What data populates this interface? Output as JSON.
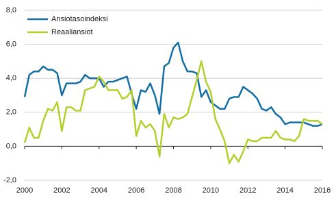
{
  "chart_data": {
    "type": "line",
    "x": [
      2000,
      2000.25,
      2000.5,
      2000.75,
      2001,
      2001.25,
      2001.5,
      2001.75,
      2002,
      2002.25,
      2002.5,
      2002.75,
      2003,
      2003.25,
      2003.5,
      2003.75,
      2004,
      2004.25,
      2004.5,
      2004.75,
      2005,
      2005.25,
      2005.5,
      2005.75,
      2006,
      2006.25,
      2006.5,
      2006.75,
      2007,
      2007.25,
      2007.5,
      2007.75,
      2008,
      2008.25,
      2008.5,
      2008.75,
      2009,
      2009.25,
      2009.5,
      2009.75,
      2010,
      2010.25,
      2010.5,
      2010.75,
      2011,
      2011.25,
      2011.5,
      2011.75,
      2012,
      2012.25,
      2012.5,
      2012.75,
      2013,
      2013.25,
      2013.5,
      2013.75,
      2014,
      2014.25,
      2014.5,
      2014.75,
      2015,
      2015.25,
      2015.5,
      2015.75,
      2016
    ],
    "series": [
      {
        "name": "Ansiotasoindeksi",
        "color": "#136ea6",
        "values": [
          2.9,
          4.2,
          4.4,
          4.4,
          4.7,
          4.5,
          4.5,
          4.3,
          3.0,
          3.7,
          3.7,
          3.7,
          3.8,
          4.2,
          4.0,
          4.0,
          4.0,
          3.5,
          3.8,
          3.8,
          3.9,
          4.0,
          4.1,
          3.1,
          2.2,
          3.3,
          3.2,
          3.7,
          3.0,
          1.9,
          4.7,
          4.9,
          5.8,
          6.1,
          5.0,
          4.4,
          4.4,
          4.3,
          2.9,
          3.3,
          2.6,
          2.4,
          2.2,
          2.2,
          2.8,
          2.9,
          2.9,
          3.5,
          3.3,
          3.1,
          2.8,
          2.2,
          2.1,
          2.3,
          1.9,
          1.7,
          1.3,
          1.4,
          1.4,
          1.4,
          1.4,
          1.3,
          1.2,
          1.2,
          1.3
        ]
      },
      {
        "name": "Reaaliansiot",
        "color": "#b4cf2c",
        "values": [
          0.2,
          1.1,
          0.5,
          0.5,
          1.5,
          2.2,
          2.1,
          2.6,
          0.9,
          2.3,
          2.3,
          2.1,
          2.1,
          3.3,
          3.4,
          3.5,
          4.1,
          3.8,
          3.3,
          3.3,
          3.3,
          2.8,
          2.9,
          3.3,
          0.6,
          1.5,
          1.1,
          1.3,
          0.9,
          -0.6,
          1.9,
          1.1,
          1.7,
          1.6,
          1.7,
          1.9,
          2.9,
          3.9,
          5.0,
          3.8,
          3.2,
          1.6,
          1.0,
          0.3,
          -1.0,
          -0.5,
          -0.9,
          -0.3,
          0.4,
          0.3,
          0.3,
          0.5,
          0.5,
          0.5,
          0.9,
          0.5,
          0.4,
          0.4,
          0.3,
          0.6,
          1.6,
          1.5,
          1.5,
          1.5,
          1.3
        ]
      }
    ],
    "xlim": [
      2000,
      2016
    ],
    "xticks": [
      2000,
      2002,
      2004,
      2006,
      2008,
      2010,
      2012,
      2014,
      2016
    ],
    "ylim": [
      -2,
      8
    ],
    "yticks": [
      {
        "value": -2,
        "label": "-2,0"
      },
      {
        "value": 0,
        "label": "0,0"
      },
      {
        "value": 2,
        "label": "2,0"
      },
      {
        "value": 4,
        "label": "4,0"
      },
      {
        "value": 6,
        "label": "6,0"
      },
      {
        "value": 8,
        "label": "8,0"
      }
    ],
    "grid": true,
    "legend": "upper left"
  }
}
